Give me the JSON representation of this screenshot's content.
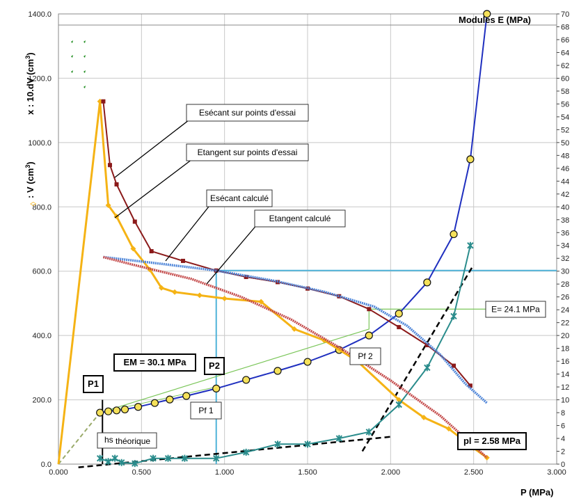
{
  "chart_data": {
    "type": "line",
    "xlabel": "P (MPa)",
    "ylabel_left_1": ": V (cm",
    "ylabel_left_2": "x : 10.dV (cm",
    "ylabel_right": "Modules E (MPa)",
    "xlim": [
      0,
      3.0
    ],
    "ylim_left": [
      0,
      1400
    ],
    "ylim_right": [
      0,
      70
    ],
    "x_ticks": [
      "0.000",
      "0.500",
      "1.000",
      "1.500",
      "2.000",
      "2.500",
      "3.000"
    ],
    "y_left_ticks": [
      "0.0",
      "200.0",
      "400.0",
      "600.0",
      "800.0",
      "1000.0",
      "1200.0",
      "1400.0"
    ],
    "y_right_ticks": [
      "0",
      "2",
      "4",
      "6",
      "8",
      "10",
      "12",
      "14",
      "16",
      "18",
      "20",
      "22",
      "24",
      "26",
      "28",
      "30",
      "32",
      "34",
      "36",
      "38",
      "40",
      "42",
      "44",
      "46",
      "48",
      "50",
      "52",
      "54",
      "56",
      "58",
      "60",
      "62",
      "64",
      "66",
      "68",
      "70"
    ],
    "series": [
      {
        "axis": "left",
        "color": "#1f2fbf",
        "marker": "circle",
        "values": [
          [
            0.25,
            160
          ],
          [
            0.3,
            164
          ],
          [
            0.35,
            167
          ],
          [
            0.4,
            170
          ],
          [
            0.48,
            178
          ],
          [
            0.58,
            190
          ],
          [
            0.67,
            201
          ],
          [
            0.77,
            212
          ],
          [
            0.95,
            235
          ],
          [
            1.13,
            262
          ],
          [
            1.32,
            290
          ],
          [
            1.5,
            318
          ],
          [
            1.69,
            355
          ],
          [
            1.87,
            400
          ],
          [
            2.05,
            468
          ],
          [
            2.22,
            565
          ],
          [
            2.38,
            715
          ],
          [
            2.48,
            948
          ],
          [
            2.58,
            1400
          ]
        ]
      },
      {
        "axis": "left",
        "color": "#f5b315",
        "marker": "diamond",
        "values": [
          [
            0.0,
            0
          ],
          [
            0.25,
            1128
          ],
          [
            0.3,
            805
          ],
          [
            0.35,
            770
          ],
          [
            0.45,
            670
          ],
          [
            0.55,
            605
          ],
          [
            0.62,
            548
          ],
          [
            0.7,
            535
          ],
          [
            0.85,
            525
          ],
          [
            1.0,
            515
          ],
          [
            1.22,
            505
          ],
          [
            1.42,
            420
          ],
          [
            1.6,
            385
          ],
          [
            1.8,
            320
          ],
          [
            2.05,
            200
          ],
          [
            2.2,
            145
          ],
          [
            2.35,
            110
          ],
          [
            2.5,
            50
          ],
          [
            2.58,
            20
          ]
        ]
      },
      {
        "axis": "left",
        "color": "#2a8c8c",
        "marker": "star",
        "values": [
          [
            0.25,
            18
          ],
          [
            0.3,
            8
          ],
          [
            0.34,
            18
          ],
          [
            0.38,
            5
          ],
          [
            0.46,
            2
          ],
          [
            0.57,
            18
          ],
          [
            0.66,
            18
          ],
          [
            0.76,
            18
          ],
          [
            0.95,
            18
          ],
          [
            1.13,
            37
          ],
          [
            1.32,
            62
          ],
          [
            1.5,
            62
          ],
          [
            1.69,
            80
          ],
          [
            1.87,
            100
          ],
          [
            2.05,
            185
          ],
          [
            2.22,
            300
          ],
          [
            2.38,
            460
          ],
          [
            2.48,
            680
          ]
        ]
      },
      {
        "axis": "right",
        "color": "#8b1a1a",
        "marker": "square",
        "values": [
          [
            0.27,
            56.4
          ],
          [
            0.31,
            46.5
          ],
          [
            0.35,
            43.5
          ],
          [
            0.46,
            37.7
          ],
          [
            0.56,
            33.1
          ],
          [
            0.75,
            31.6
          ],
          [
            0.95,
            30.1
          ],
          [
            1.13,
            29.1
          ],
          [
            1.32,
            28.3
          ],
          [
            1.5,
            27.3
          ],
          [
            1.69,
            26.1
          ],
          [
            1.87,
            24.1
          ],
          [
            2.05,
            21.3
          ],
          [
            2.22,
            18.5
          ],
          [
            2.38,
            15.3
          ],
          [
            2.48,
            12.2
          ]
        ]
      },
      {
        "axis": "right",
        "color": "#4f86d9",
        "marker": "none",
        "values": [
          [
            0.27,
            32.2
          ],
          [
            0.6,
            31.2
          ],
          [
            0.95,
            30.1
          ],
          [
            1.3,
            28.5
          ],
          [
            1.6,
            26.8
          ],
          [
            1.9,
            24.5
          ],
          [
            2.1,
            21.5
          ],
          [
            2.3,
            17.0
          ],
          [
            2.45,
            12.5
          ],
          [
            2.58,
            9.5
          ]
        ]
      },
      {
        "axis": "right",
        "color": "#c44a4a",
        "marker": "none",
        "values": [
          [
            0.27,
            32.2
          ],
          [
            0.45,
            31.0
          ],
          [
            0.8,
            28.8
          ],
          [
            1.1,
            26.0
          ],
          [
            1.4,
            22.5
          ],
          [
            1.7,
            18.0
          ],
          [
            2.0,
            13.0
          ],
          [
            2.3,
            7.5
          ],
          [
            2.58,
            1.0
          ]
        ]
      }
    ],
    "annotations": [
      "Esécant sur points d'essai",
      "Etangent sur points d'essai",
      "Esécant calculé",
      "Etangent calculé",
      "E= 24.1 MPa",
      "EM = 30.1 MPa",
      "pl = 2.58 MPa",
      "P1",
      "P2",
      "Pf 1",
      "Pf 2",
      "hs",
      "théorique"
    ],
    "grid": true,
    "legend": "none"
  }
}
